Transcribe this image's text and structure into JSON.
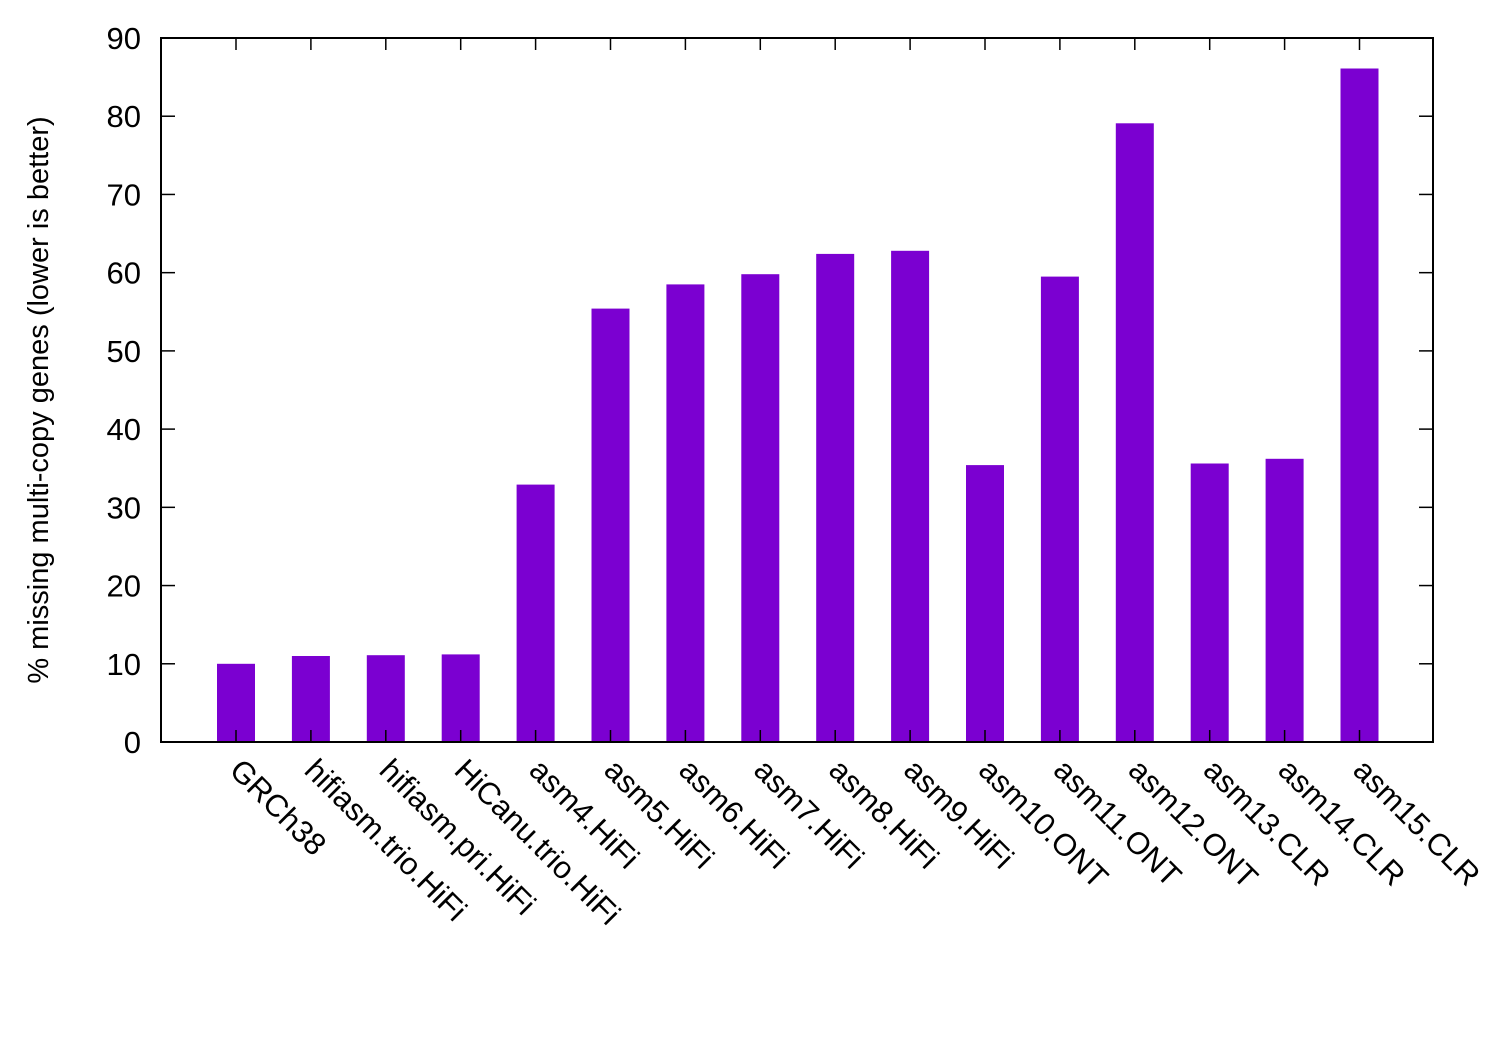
{
  "chart_data": {
    "type": "bar",
    "title": "",
    "xlabel": "",
    "ylabel": "% missing multi-copy genes (lower is better)",
    "ylim": [
      0,
      90
    ],
    "yticks": [
      0,
      10,
      20,
      30,
      40,
      50,
      60,
      70,
      80,
      90
    ],
    "grid": false,
    "legend": "none",
    "bar_color": "#7b00d1",
    "categories": [
      "GRCh38",
      "hifiasm.trio.HiFi",
      "hifiasm.pri.HiFi",
      "HiCanu.trio.HiFi",
      "asm4.HiFi",
      "asm5.HiFi",
      "asm6.HiFi",
      "asm7.HiFi",
      "asm8.HiFi",
      "asm9.HiFi",
      "asm10.ONT",
      "asm11.ONT",
      "asm12.ONT",
      "asm13.CLR",
      "asm14.CLR",
      "asm15.CLR"
    ],
    "values": [
      10.0,
      11.0,
      11.1,
      11.2,
      32.9,
      55.4,
      58.5,
      59.8,
      62.4,
      62.8,
      35.4,
      59.5,
      79.1,
      35.6,
      36.2,
      86.1
    ]
  }
}
